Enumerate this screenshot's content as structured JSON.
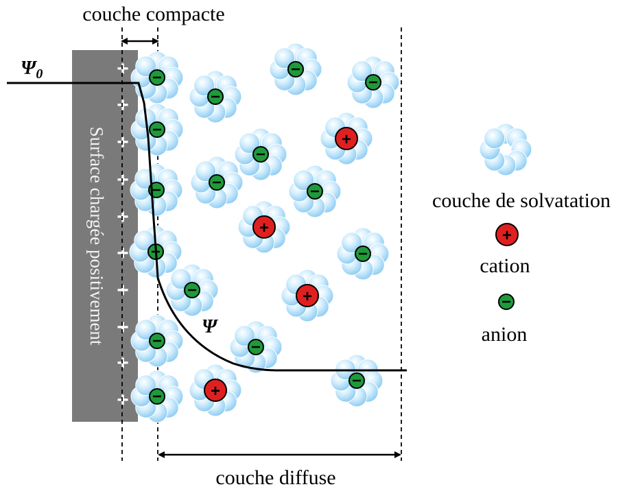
{
  "labels": {
    "compact_layer": "couche compacte",
    "diffuse_layer": "couche diffuse",
    "surface": "Surface chargée positivement",
    "psi0_symbol": "Ψ",
    "psi0_subscript": "0",
    "psi_symbol": "Ψ"
  },
  "legend": {
    "solvation": "couche de solvatation",
    "cation": "cation",
    "anion": "anion"
  },
  "surface_charge_symbol": "+",
  "cation_symbol": "+",
  "anion_symbol": "−",
  "colors": {
    "surface": "#7a7a7a",
    "cation": "#e02020",
    "anion": "#1f9a3a",
    "solvent": "#bfe3fb",
    "solvent_edge": "#7cc3ee"
  }
}
